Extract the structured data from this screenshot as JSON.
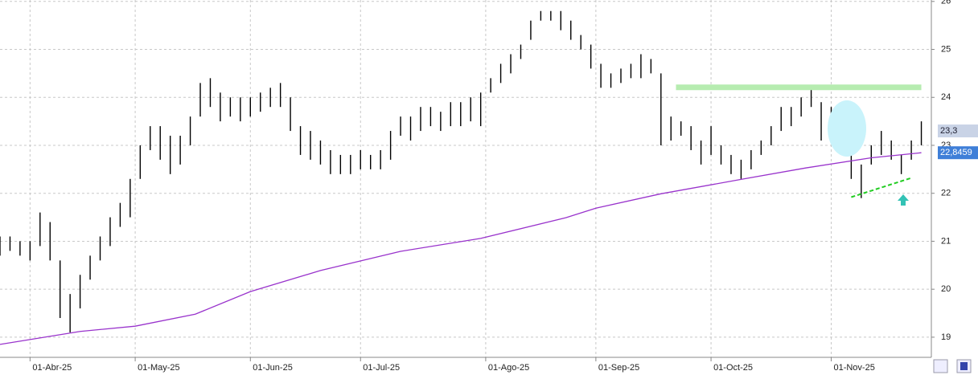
{
  "chart_data": {
    "type": "ohlc",
    "x": [
      0,
      2,
      4,
      6,
      8,
      10,
      12,
      14,
      16,
      18,
      20,
      22,
      24,
      26,
      28,
      30,
      32,
      34,
      36,
      38,
      40,
      42,
      44,
      46,
      48,
      50,
      52,
      54,
      56,
      58,
      60,
      62,
      64,
      66,
      68,
      70,
      72,
      74,
      76,
      78,
      80,
      82,
      84,
      86,
      88,
      90,
      92,
      94,
      96,
      98,
      100,
      102,
      104,
      106,
      108,
      110,
      112,
      114,
      116,
      118,
      120,
      122,
      124,
      126,
      128,
      130,
      132,
      134,
      136,
      138,
      140,
      142,
      144,
      146,
      148,
      150,
      152,
      154,
      156,
      158,
      160,
      162,
      164,
      166,
      168,
      170,
      172,
      174,
      176,
      178,
      180,
      182,
      184
    ],
    "series": [
      {
        "color": "#000000",
        "high": [
          21.1,
          21.1,
          21.0,
          21.0,
          21.6,
          21.4,
          20.6,
          19.9,
          20.3,
          20.7,
          21.1,
          21.5,
          21.8,
          22.3,
          23.0,
          23.4,
          23.4,
          23.2,
          23.2,
          23.6,
          24.3,
          24.4,
          24.1,
          24.0,
          24.0,
          24.0,
          24.1,
          24.2,
          24.3,
          24.0,
          23.4,
          23.3,
          23.1,
          22.9,
          22.8,
          22.8,
          22.9,
          22.8,
          22.9,
          23.3,
          23.6,
          23.6,
          23.8,
          23.8,
          23.7,
          23.9,
          23.9,
          24.0,
          24.1,
          24.4,
          24.7,
          24.9,
          25.1,
          25.6,
          25.8,
          25.8,
          25.8,
          25.6,
          25.3,
          25.1,
          24.7,
          24.5,
          24.6,
          24.7,
          24.9,
          24.8,
          24.5,
          23.6,
          23.5,
          23.4,
          23.1,
          23.4,
          23.0,
          22.8,
          22.7,
          22.9,
          23.1,
          23.4,
          23.8,
          23.8,
          24.0,
          24.2,
          23.9,
          23.8,
          23.8,
          23.0,
          22.6,
          23.0,
          23.3,
          23.1,
          22.8,
          23.1,
          23.5
        ],
        "low": [
          20.7,
          20.8,
          20.7,
          20.6,
          20.9,
          20.6,
          19.4,
          19.1,
          19.6,
          20.2,
          20.6,
          20.9,
          21.3,
          21.5,
          22.3,
          22.9,
          22.7,
          22.4,
          22.6,
          23.0,
          23.6,
          23.8,
          23.5,
          23.6,
          23.5,
          23.6,
          23.7,
          23.8,
          23.8,
          23.3,
          22.8,
          22.7,
          22.6,
          22.4,
          22.4,
          22.4,
          22.5,
          22.5,
          22.5,
          22.7,
          23.2,
          23.1,
          23.3,
          23.4,
          23.3,
          23.4,
          23.4,
          23.5,
          23.4,
          24.1,
          24.3,
          24.5,
          24.8,
          25.2,
          25.6,
          25.6,
          25.4,
          25.2,
          25.0,
          24.6,
          24.2,
          24.2,
          24.3,
          24.4,
          24.4,
          24.5,
          23.0,
          23.1,
          23.2,
          22.9,
          22.6,
          22.8,
          22.6,
          22.4,
          22.3,
          22.5,
          22.8,
          23.0,
          23.3,
          23.4,
          23.6,
          23.8,
          23.1,
          23.3,
          23.2,
          22.3,
          21.9,
          22.6,
          22.8,
          22.7,
          22.4,
          22.7,
          23.0
        ]
      },
      {
        "color": "#9933cc",
        "x": [
          0,
          16,
          27,
          39,
          50,
          64,
          80,
          96,
          113,
          119,
          132,
          148,
          161,
          174,
          184
        ],
        "values": [
          18.85,
          19.12,
          19.23,
          19.48,
          19.95,
          20.39,
          20.79,
          21.06,
          21.49,
          21.69,
          21.99,
          22.29,
          22.53,
          22.74,
          22.8459
        ]
      }
    ],
    "last_price": {
      "value": 23.3,
      "label": "23,3"
    },
    "ma_label": {
      "value": 22.8459,
      "label": "22,8459"
    },
    "resistance": {
      "x": [
        135,
        184
      ],
      "y": 24.21,
      "color": "#b6ecb0"
    },
    "support": {
      "x": [
        170,
        182
      ],
      "y": [
        21.92,
        22.32
      ],
      "color": "#22cc22"
    },
    "xlim": [
      0,
      186
    ],
    "ylim": [
      18.58,
      26.03
    ],
    "yticks": [
      19,
      20,
      21,
      22,
      23,
      24,
      25,
      26
    ],
    "xticks": [
      {
        "value": 6,
        "label": "01-Abr-25"
      },
      {
        "value": 27,
        "label": "01-May-25"
      },
      {
        "value": 50,
        "label": "01-Jun-25"
      },
      {
        "value": 72,
        "label": "01-Jul-25"
      },
      {
        "value": 97,
        "label": "01-Ago-25"
      },
      {
        "value": 119,
        "label": "01-Sep-25"
      },
      {
        "value": 142,
        "label": "01-Oct-25"
      },
      {
        "value": 166,
        "label": "01-Nov-25"
      }
    ],
    "grid": true
  }
}
